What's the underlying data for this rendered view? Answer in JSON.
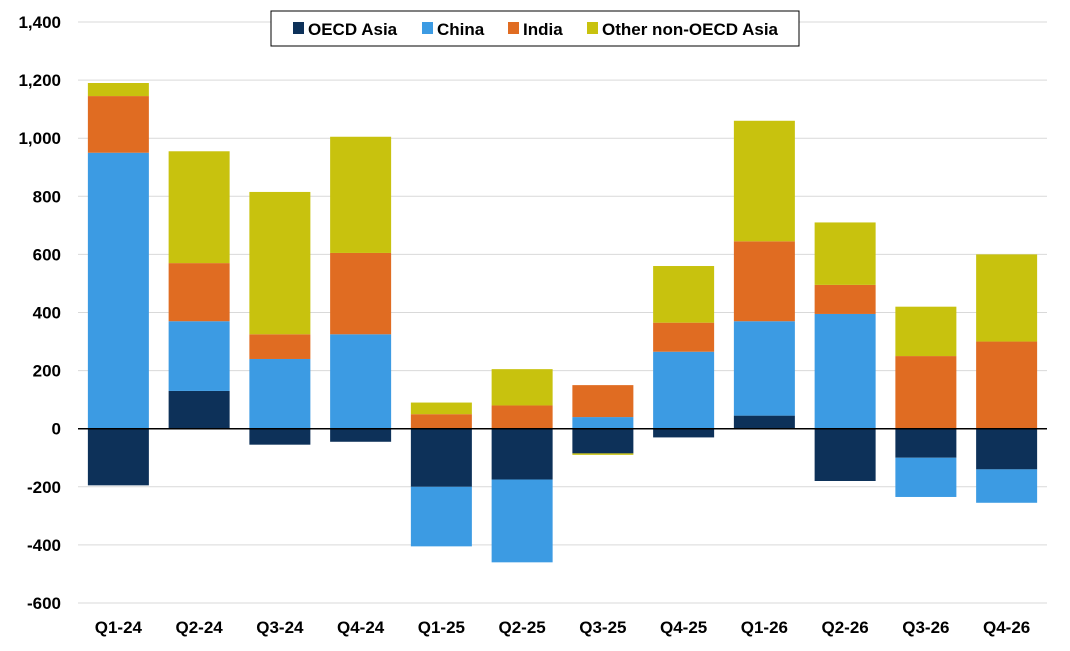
{
  "chart_data": {
    "type": "stacked-bar",
    "title": "",
    "xlabel": "",
    "ylabel": "",
    "ylim": [
      -600,
      1400
    ],
    "ytick_step": 200,
    "yticks": [
      "1,400",
      "1,200",
      "1,000",
      "800",
      "600",
      "400",
      "200",
      "0",
      "-200",
      "-400",
      "-600"
    ],
    "grid": true,
    "legend_position": "top-center",
    "categories": [
      "Q1-24",
      "Q2-24",
      "Q3-24",
      "Q4-24",
      "Q1-25",
      "Q2-25",
      "Q3-25",
      "Q4-25",
      "Q1-26",
      "Q2-26",
      "Q3-26",
      "Q4-26"
    ],
    "series": [
      {
        "name": "OECD Asia",
        "color": "#0d3159",
        "values": [
          -195,
          130,
          -55,
          -45,
          -200,
          -175,
          -85,
          -30,
          45,
          -180,
          -100,
          -140
        ]
      },
      {
        "name": "China",
        "color": "#3c9be3",
        "values": [
          950,
          240,
          240,
          325,
          -205,
          -285,
          40,
          265,
          325,
          395,
          -135,
          -115
        ]
      },
      {
        "name": "India",
        "color": "#e06c22",
        "values": [
          195,
          200,
          85,
          280,
          50,
          80,
          110,
          100,
          275,
          100,
          250,
          300
        ]
      },
      {
        "name": "Other non-OECD Asia",
        "color": "#c8c20e",
        "values": [
          45,
          385,
          490,
          400,
          40,
          125,
          -5,
          195,
          415,
          215,
          170,
          300
        ]
      }
    ]
  }
}
